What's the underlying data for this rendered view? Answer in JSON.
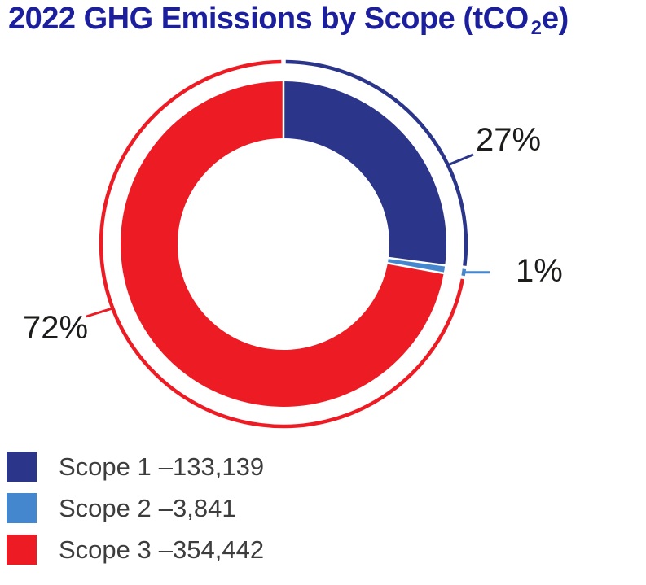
{
  "header": {
    "title_prefix": "2022 GHG Emissions by Scope (tCO",
    "title_subscript": "2",
    "title_suffix": "e)",
    "title_full": "2022 GHG Emissions by Scope (tCO2e)",
    "title_color": "#1B1F9E"
  },
  "callouts": {
    "scope1_pct": "27%",
    "scope2_pct": "1%",
    "scope3_pct": "72%"
  },
  "legend": {
    "items": [
      {
        "label": "Scope 1",
        "value_text": "–133,139",
        "color": "#2B358A"
      },
      {
        "label": "Scope 2",
        "value_text": "–3,841",
        "color": "#4587CE"
      },
      {
        "label": "Scope 3",
        "value_text": "–354,442",
        "color": "#ED1C24"
      }
    ]
  },
  "chart_data": {
    "type": "pie",
    "subtype": "donut",
    "title": "2022 GHG Emissions by Scope (tCO2e)",
    "categories": [
      "Scope 1",
      "Scope 2",
      "Scope 3"
    ],
    "values": [
      133139,
      3841,
      354442
    ],
    "percent_labels": [
      "27%",
      "1%",
      "72%"
    ],
    "colors": [
      "#2B358A",
      "#4587CE",
      "#ED1C24"
    ],
    "start_angle_deg": 0,
    "direction": "clockwise",
    "donut_hole": true,
    "outer_accent_ring": true,
    "legend_position": "bottom-left"
  }
}
